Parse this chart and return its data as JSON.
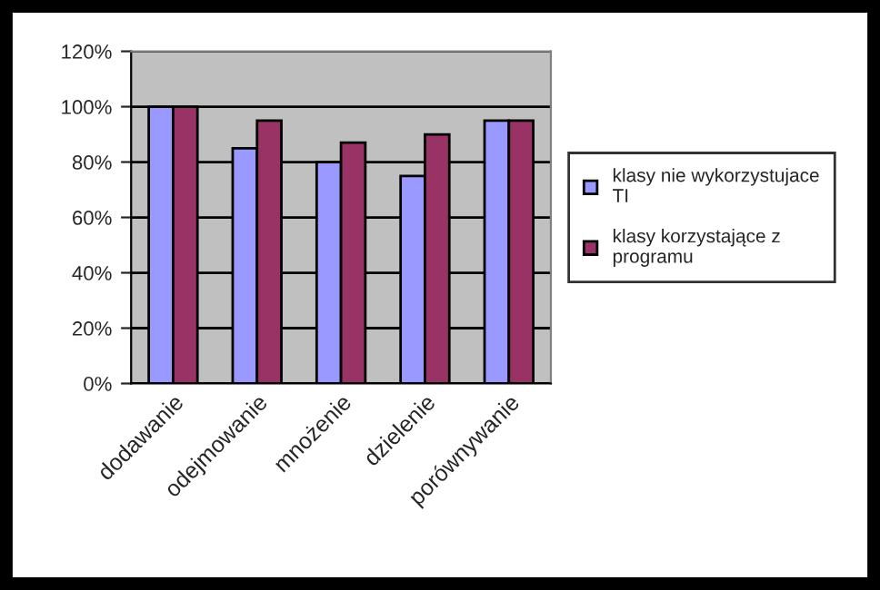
{
  "chart_data": {
    "type": "bar",
    "categories": [
      "dodawanie",
      "odejmowanie",
      "mnożenie",
      "dzielenie",
      "porównywanie"
    ],
    "series": [
      {
        "name": "klasy nie wykorzystujace TI",
        "color": "#9999ff",
        "values": [
          100,
          85,
          80,
          75,
          95
        ]
      },
      {
        "name": "klasy korzystające z programu",
        "color": "#993366",
        "values": [
          100,
          95,
          87,
          90,
          95
        ]
      }
    ],
    "ylim": [
      0,
      120
    ],
    "yticks": [
      {
        "value": 0,
        "label": "0%"
      },
      {
        "value": 20,
        "label": "20%"
      },
      {
        "value": 40,
        "label": "40%"
      },
      {
        "value": 60,
        "label": "60%"
      },
      {
        "value": 80,
        "label": "80%"
      },
      {
        "value": 100,
        "label": "100%"
      },
      {
        "value": 120,
        "label": "120%"
      }
    ],
    "grid": "y",
    "legend": "right"
  }
}
